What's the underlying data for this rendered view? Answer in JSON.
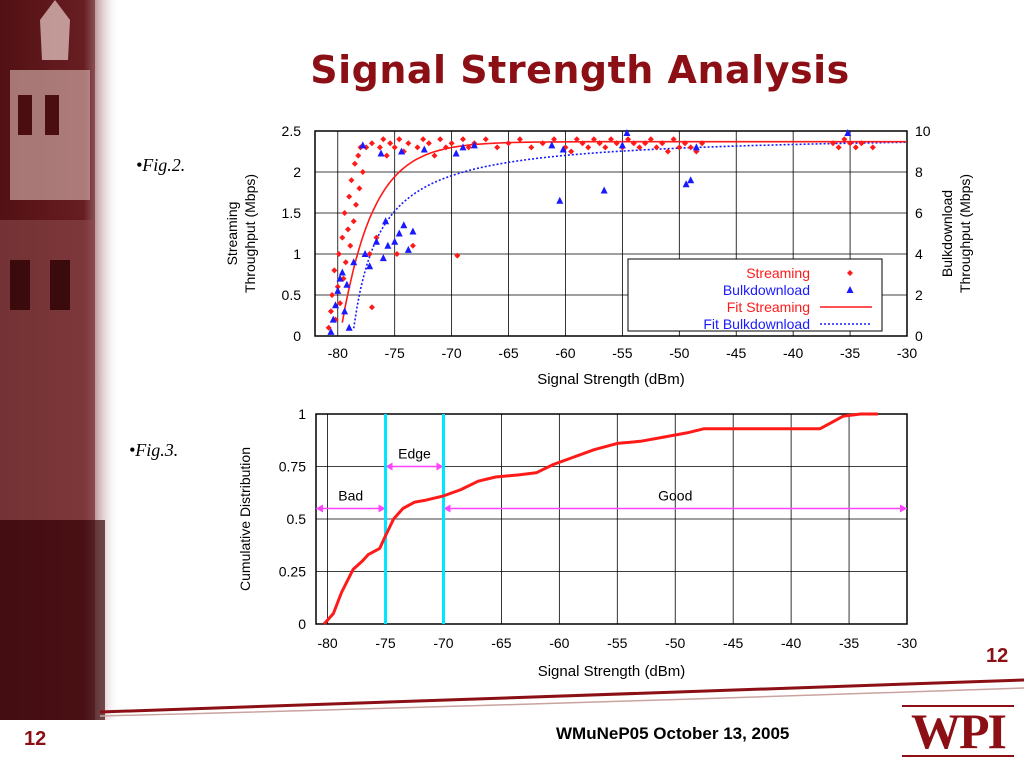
{
  "slide": {
    "title": "Signal Strength Analysis",
    "fig2_label": "•Fig.2.",
    "fig3_label": "•Fig.3.",
    "page_number": "12",
    "footer": "WMuNeP05 October 13, 2005",
    "logo": "WPI"
  },
  "colors": {
    "title": "#8b0f14",
    "streaming": "#ff1a1a",
    "bulk": "#1a1aff",
    "marker_line": "#00e5ff",
    "range_arrow": "#ff44ff"
  },
  "chart_data": [
    {
      "type": "scatter",
      "xlabel": "Signal Strength (dBm)",
      "ylabel": "Streaming Throughput (Mbps)",
      "y2label": "Bulkdownload Throughput (Mbps)",
      "xlim": [
        -82,
        -30
      ],
      "ylim": [
        0,
        2.5
      ],
      "y2lim": [
        0,
        10
      ],
      "xticks": [
        -80,
        -75,
        -70,
        -65,
        -60,
        -55,
        -50,
        -45,
        -40,
        -35,
        -30
      ],
      "yticks": [
        0,
        0.5,
        1,
        1.5,
        2,
        2.5
      ],
      "y2ticks": [
        0,
        2,
        4,
        6,
        8,
        10
      ],
      "grid": true,
      "legend_position": "bottom-right",
      "series": [
        {
          "name": "Streaming",
          "kind": "points",
          "points": [
            [
              -80.8,
              0.1
            ],
            [
              -80.6,
              0.3
            ],
            [
              -80.5,
              0.5
            ],
            [
              -80.3,
              0.8
            ],
            [
              -80.2,
              0.2
            ],
            [
              -80,
              0.6
            ],
            [
              -79.9,
              1.0
            ],
            [
              -79.8,
              0.4
            ],
            [
              -79.6,
              1.2
            ],
            [
              -79.5,
              0.7
            ],
            [
              -79.4,
              1.5
            ],
            [
              -79.3,
              0.9
            ],
            [
              -79.1,
              1.3
            ],
            [
              -79,
              1.7
            ],
            [
              -78.9,
              1.1
            ],
            [
              -78.8,
              1.9
            ],
            [
              -78.6,
              1.4
            ],
            [
              -78.5,
              2.1
            ],
            [
              -78.4,
              1.6
            ],
            [
              -78.2,
              2.2
            ],
            [
              -78.1,
              1.8
            ],
            [
              -78,
              2.3
            ],
            [
              -77.8,
              2.0
            ],
            [
              -77.5,
              2.3
            ],
            [
              -77.2,
              1.0
            ],
            [
              -77,
              2.35
            ],
            [
              -76.6,
              1.2
            ],
            [
              -76.3,
              2.3
            ],
            [
              -76,
              2.4
            ],
            [
              -75.7,
              2.2
            ],
            [
              -75.4,
              2.35
            ],
            [
              -75,
              2.3
            ],
            [
              -74.8,
              1.0
            ],
            [
              -74.6,
              2.4
            ],
            [
              -74.2,
              2.25
            ],
            [
              -73.8,
              2.35
            ],
            [
              -73.4,
              1.1
            ],
            [
              -73,
              2.3
            ],
            [
              -72.5,
              2.4
            ],
            [
              -72,
              2.35
            ],
            [
              -71.5,
              2.2
            ],
            [
              -71,
              2.4
            ],
            [
              -70.5,
              2.3
            ],
            [
              -70,
              2.35
            ],
            [
              -69.5,
              0.98
            ],
            [
              -69,
              2.4
            ],
            [
              -68.5,
              2.3
            ],
            [
              -68,
              2.35
            ],
            [
              -67,
              2.4
            ],
            [
              -66,
              2.3
            ],
            [
              -65,
              2.35
            ],
            [
              -64,
              2.4
            ],
            [
              -63,
              2.3
            ],
            [
              -62,
              2.35
            ],
            [
              -61,
              2.4
            ],
            [
              -60,
              2.3
            ],
            [
              -59.5,
              2.25
            ],
            [
              -59,
              2.4
            ],
            [
              -58.5,
              2.35
            ],
            [
              -58,
              2.3
            ],
            [
              -57.5,
              2.4
            ],
            [
              -57,
              2.35
            ],
            [
              -56.5,
              2.3
            ],
            [
              -56,
              2.4
            ],
            [
              -55.5,
              2.35
            ],
            [
              -55,
              2.3
            ],
            [
              -54.5,
              2.4
            ],
            [
              -54,
              2.35
            ],
            [
              -53.5,
              2.3
            ],
            [
              -53,
              2.35
            ],
            [
              -52.5,
              2.4
            ],
            [
              -52,
              2.3
            ],
            [
              -51.5,
              2.35
            ],
            [
              -51,
              2.25
            ],
            [
              -50.5,
              2.4
            ],
            [
              -50,
              2.3
            ],
            [
              -49.5,
              2.35
            ],
            [
              -49,
              2.3
            ],
            [
              -48.5,
              2.25
            ],
            [
              -48,
              2.35
            ],
            [
              -36.5,
              2.35
            ],
            [
              -36,
              2.3
            ],
            [
              -35.5,
              2.4
            ],
            [
              -35,
              2.35
            ],
            [
              -34.5,
              2.3
            ],
            [
              -34,
              2.35
            ],
            [
              -33,
              2.3
            ],
            [
              -77,
              0.35
            ]
          ]
        },
        {
          "name": "Bulkdownload",
          "kind": "points",
          "axis": "y2",
          "points": [
            [
              -80.6,
              0.2
            ],
            [
              -80.4,
              0.8
            ],
            [
              -80.2,
              1.5
            ],
            [
              -80,
              2.2
            ],
            [
              -79.8,
              2.8
            ],
            [
              -79.6,
              3.1
            ],
            [
              -79.4,
              1.2
            ],
            [
              -79.2,
              2.5
            ],
            [
              -79,
              0.4
            ],
            [
              -78.6,
              3.6
            ],
            [
              -77.6,
              4.0
            ],
            [
              -77.2,
              3.4
            ],
            [
              -76.6,
              4.6
            ],
            [
              -76,
              3.8
            ],
            [
              -75.6,
              4.4
            ],
            [
              -75,
              4.6
            ],
            [
              -74.6,
              5.0
            ],
            [
              -74.2,
              5.4
            ],
            [
              -73.8,
              4.2
            ],
            [
              -73.4,
              5.1
            ],
            [
              -75.8,
              5.6
            ],
            [
              -77.8,
              9.3
            ],
            [
              -76.2,
              8.9
            ],
            [
              -74.4,
              9.0
            ],
            [
              -72.4,
              9.1
            ],
            [
              -69.6,
              8.9
            ],
            [
              -69,
              9.2
            ],
            [
              -68,
              9.3
            ],
            [
              -61.2,
              9.3
            ],
            [
              -60.5,
              6.6
            ],
            [
              -60.2,
              9.1
            ],
            [
              -56.6,
              7.1
            ],
            [
              -55,
              9.3
            ],
            [
              -54.6,
              9.9
            ],
            [
              -49.4,
              7.4
            ],
            [
              -49,
              7.6
            ],
            [
              -48.5,
              9.2
            ],
            [
              -35.2,
              9.9
            ]
          ]
        },
        {
          "name": "Fit Streaming",
          "kind": "line"
        },
        {
          "name": "Fit Bulkdownload",
          "kind": "line"
        }
      ]
    },
    {
      "type": "line",
      "xlabel": "Signal Strength (dBm)",
      "ylabel": "Cumulative Distribution",
      "xlim": [
        -81,
        -30
      ],
      "ylim": [
        0,
        1
      ],
      "xticks": [
        -80,
        -75,
        -70,
        -65,
        -60,
        -55,
        -50,
        -45,
        -40,
        -35,
        -30
      ],
      "yticks": [
        0,
        0.25,
        0.5,
        0.75,
        1
      ],
      "grid": true,
      "series": [
        {
          "kind": "cdf",
          "points": [
            [
              -80.3,
              0
            ],
            [
              -79.5,
              0.05
            ],
            [
              -78.8,
              0.15
            ],
            [
              -77.8,
              0.26
            ],
            [
              -77,
              0.3
            ],
            [
              -76.5,
              0.33
            ],
            [
              -75.5,
              0.36
            ],
            [
              -75,
              0.42
            ],
            [
              -74.3,
              0.5
            ],
            [
              -73.5,
              0.55
            ],
            [
              -72.5,
              0.58
            ],
            [
              -71.5,
              0.59
            ],
            [
              -70,
              0.61
            ],
            [
              -68.5,
              0.64
            ],
            [
              -67,
              0.68
            ],
            [
              -65.5,
              0.7
            ],
            [
              -63.5,
              0.71
            ],
            [
              -62,
              0.72
            ],
            [
              -60.5,
              0.76
            ],
            [
              -59,
              0.79
            ],
            [
              -57,
              0.83
            ],
            [
              -55,
              0.86
            ],
            [
              -53,
              0.87
            ],
            [
              -51,
              0.89
            ],
            [
              -49,
              0.91
            ],
            [
              -47.5,
              0.93
            ],
            [
              -46,
              0.93
            ],
            [
              -40,
              0.93
            ],
            [
              -37.5,
              0.93
            ],
            [
              -36.5,
              0.96
            ],
            [
              -35.5,
              0.99
            ],
            [
              -34,
              1.0
            ],
            [
              -32.5,
              1.0
            ]
          ]
        }
      ],
      "markers": [
        -75,
        -70
      ],
      "regions": [
        {
          "label": "Bad",
          "from": -81,
          "to": -75,
          "y": 0.55
        },
        {
          "label": "Edge",
          "from": -75,
          "to": -70,
          "y": 0.75
        },
        {
          "label": "Good",
          "from": -70,
          "to": -30,
          "y": 0.55
        }
      ]
    }
  ]
}
